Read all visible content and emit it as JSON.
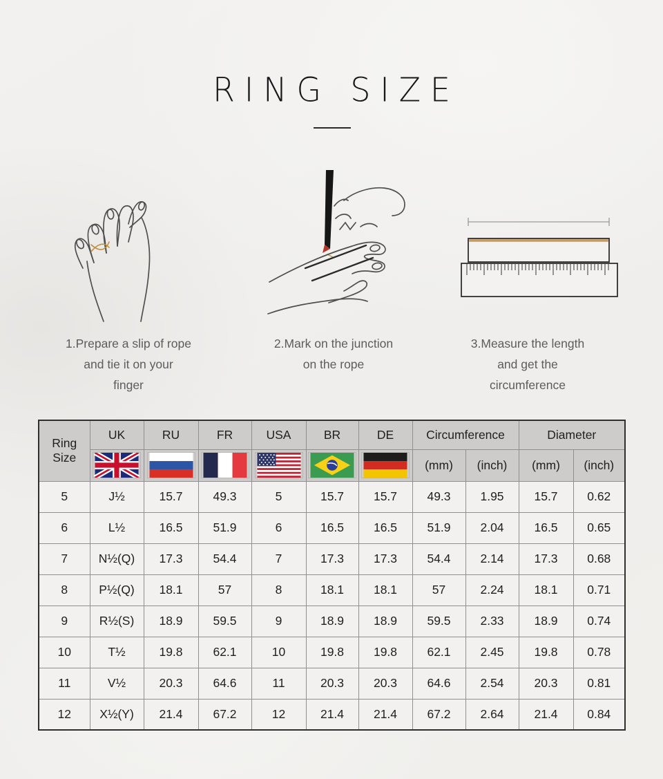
{
  "title": "RING SIZE",
  "steps": [
    {
      "icon": "hand-with-rope-illustration",
      "lines": [
        "1.Prepare a slip of rope",
        "and tie it on your",
        "finger"
      ]
    },
    {
      "icon": "mark-rope-illustration",
      "lines": [
        "2.Mark on the junction",
        "on the rope"
      ]
    },
    {
      "icon": "ruler-measure-illustration",
      "lines": [
        "3.Measure the length",
        "and get the",
        "circumference"
      ]
    }
  ],
  "table": {
    "corner": "Ring Size",
    "countries": [
      "UK",
      "RU",
      "FR",
      "USA",
      "BR",
      "DE"
    ],
    "flag_icons": [
      "uk-flag-icon",
      "ru-flag-icon",
      "fr-flag-icon",
      "usa-flag-icon",
      "br-flag-icon",
      "de-flag-icon"
    ],
    "groups": [
      {
        "label": "Circumference",
        "units": [
          "(mm)",
          "(inch)"
        ]
      },
      {
        "label": "Diameter",
        "units": [
          "(mm)",
          "(inch)"
        ]
      }
    ],
    "rows": [
      [
        "5",
        "J½",
        "15.7",
        "49.3",
        "5",
        "15.7",
        "15.7",
        "49.3",
        "1.95",
        "15.7",
        "0.62"
      ],
      [
        "6",
        "L½",
        "16.5",
        "51.9",
        "6",
        "16.5",
        "16.5",
        "51.9",
        "2.04",
        "16.5",
        "0.65"
      ],
      [
        "7",
        "N½(Q)",
        "17.3",
        "54.4",
        "7",
        "17.3",
        "17.3",
        "54.4",
        "2.14",
        "17.3",
        "0.68"
      ],
      [
        "8",
        "P½(Q)",
        "18.1",
        "57",
        "8",
        "18.1",
        "18.1",
        "57",
        "2.24",
        "18.1",
        "0.71"
      ],
      [
        "9",
        "R½(S)",
        "18.9",
        "59.5",
        "9",
        "18.9",
        "18.9",
        "59.5",
        "2.33",
        "18.9",
        "0.74"
      ],
      [
        "10",
        "T½",
        "19.8",
        "62.1",
        "10",
        "19.8",
        "19.8",
        "62.1",
        "2.45",
        "19.8",
        "0.78"
      ],
      [
        "11",
        "V½",
        "20.3",
        "64.6",
        "11",
        "20.3",
        "20.3",
        "64.6",
        "2.54",
        "20.3",
        "0.81"
      ],
      [
        "12",
        "X½(Y)",
        "21.4",
        "67.2",
        "12",
        "21.4",
        "21.4",
        "67.2",
        "2.64",
        "21.4",
        "0.84"
      ]
    ]
  },
  "colors": {
    "rope_gold": "#bf8f3e",
    "mark_red": "#b5352c",
    "line_art": "#4e4e4e",
    "header_gray": "#cdccca",
    "cell_bg": "#f2f1ef"
  }
}
